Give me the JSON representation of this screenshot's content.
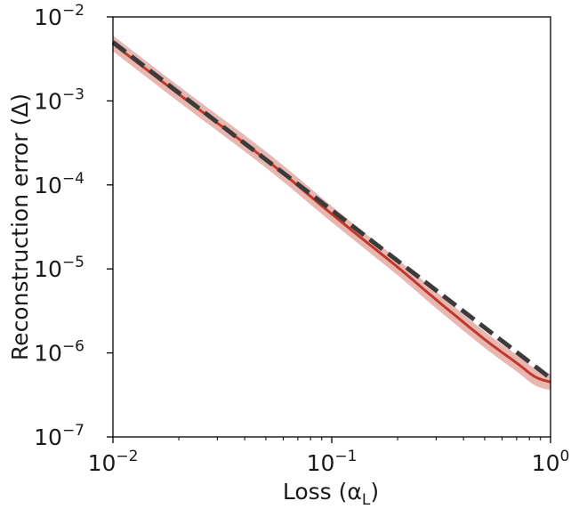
{
  "chart_data": {
    "type": "line",
    "xlabel": "Loss (α",
    "xlabel_sub": "L",
    "xlabel_close": ")",
    "ylabel": "Reconstruction error (Δ)",
    "x_scale": "log",
    "y_scale": "log",
    "xlim": [
      0.01,
      1
    ],
    "ylim": [
      1e-07,
      0.01
    ],
    "grid": false,
    "legend": "none",
    "x_ticks": [
      {
        "value": 0.01,
        "base": "10",
        "exp": "−2"
      },
      {
        "value": 0.1,
        "base": "10",
        "exp": "−1"
      },
      {
        "value": 1,
        "base": "10",
        "exp": "0"
      }
    ],
    "y_ticks": [
      {
        "value": 1e-07,
        "base": "10",
        "exp": "−7"
      },
      {
        "value": 1e-06,
        "base": "10",
        "exp": "−6"
      },
      {
        "value": 1e-05,
        "base": "10",
        "exp": "−5"
      },
      {
        "value": 0.0001,
        "base": "10",
        "exp": "−4"
      },
      {
        "value": 0.001,
        "base": "10",
        "exp": "−3"
      },
      {
        "value": 0.01,
        "base": "10",
        "exp": "−2"
      }
    ],
    "series": [
      {
        "style": "solid",
        "color": "#c0392b",
        "band_color": "#e8b7b2",
        "x": [
          0.01,
          0.02,
          0.05,
          0.1,
          0.2,
          0.3,
          0.5,
          0.7,
          0.85,
          1.0
        ],
        "y": [
          0.0048,
          0.0012,
          0.0002,
          4.5e-05,
          1.05e-05,
          4.3e-06,
          1.45e-06,
          7.6e-07,
          5.2e-07,
          4.5e-07
        ],
        "band_low": [
          0.0039,
          0.00097,
          0.00016,
          3.6e-05,
          8.4e-06,
          3.4e-06,
          1.15e-06,
          6e-07,
          4.1e-07,
          3.6e-07
        ],
        "band_high": [
          0.006,
          0.0015,
          0.00025,
          5.6e-05,
          1.3e-05,
          5.4e-06,
          1.8e-06,
          9.5e-07,
          6.5e-07,
          5.6e-07
        ]
      },
      {
        "style": "dashed",
        "color": "#3b3b3b",
        "x": [
          0.01,
          1.0
        ],
        "y": [
          0.005,
          5e-07
        ]
      }
    ]
  }
}
